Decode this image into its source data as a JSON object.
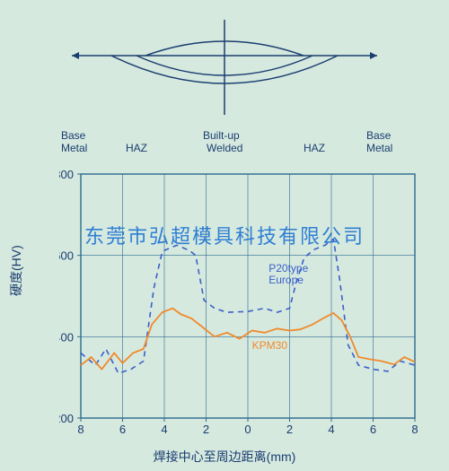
{
  "colors": {
    "page_bg": "#d6e9df",
    "grid": "#2b6a8f",
    "text": "#1a3d70",
    "watermark": "#2f7fd4",
    "series_p20": "#3b5fc9",
    "series_kpm30": "#f08a2a",
    "diagram_stroke": "#1a3d70"
  },
  "diagram": {
    "type": "weld-cross-section-sketch"
  },
  "region_labels": {
    "left_base_top": "Base",
    "left_base_bot": "Metal",
    "haz": "HAZ",
    "built_top": "Built-up",
    "built_bot": "Welded",
    "right_base_top": "Base",
    "right_base_bot": "Metal"
  },
  "chart": {
    "type": "line",
    "ylabel": "硬度(HV)",
    "xlabel": "焊接中心至周边距离(mm)",
    "ylim": [
      200,
      800
    ],
    "ytick_step": 200,
    "xticks_left": [
      8,
      6,
      4,
      2
    ],
    "xtick_center": 0,
    "xticks_right": [
      2,
      4,
      6,
      8
    ],
    "grid_x_divisions": 8,
    "grid_y_divisions": 3,
    "series": [
      {
        "name": "P20type Europe",
        "label_lines": [
          "P20type",
          "Europe"
        ],
        "color": "#3b5fc9",
        "dash": "6,5",
        "width": 1.6,
        "points": [
          {
            "x": -8,
            "y": 360
          },
          {
            "x": -7.3,
            "y": 330
          },
          {
            "x": -6.8,
            "y": 370
          },
          {
            "x": -6.2,
            "y": 310
          },
          {
            "x": -5.6,
            "y": 320
          },
          {
            "x": -5.0,
            "y": 340
          },
          {
            "x": -4.5,
            "y": 520
          },
          {
            "x": -4.1,
            "y": 610
          },
          {
            "x": -3.4,
            "y": 625
          },
          {
            "x": -2.8,
            "y": 612
          },
          {
            "x": -2.5,
            "y": 600
          },
          {
            "x": -2.1,
            "y": 490
          },
          {
            "x": -1.6,
            "y": 470
          },
          {
            "x": -1.0,
            "y": 460
          },
          {
            "x": 0,
            "y": 462
          },
          {
            "x": 0.8,
            "y": 470
          },
          {
            "x": 1.4,
            "y": 460
          },
          {
            "x": 2.0,
            "y": 470
          },
          {
            "x": 2.3,
            "y": 530
          },
          {
            "x": 2.7,
            "y": 595
          },
          {
            "x": 3.2,
            "y": 615
          },
          {
            "x": 3.7,
            "y": 625
          },
          {
            "x": 4.1,
            "y": 640
          },
          {
            "x": 4.4,
            "y": 540
          },
          {
            "x": 4.8,
            "y": 380
          },
          {
            "x": 5.3,
            "y": 330
          },
          {
            "x": 6.0,
            "y": 320
          },
          {
            "x": 6.7,
            "y": 315
          },
          {
            "x": 7.3,
            "y": 340
          },
          {
            "x": 8,
            "y": 330
          }
        ]
      },
      {
        "name": "KPM30",
        "label_lines": [
          "KPM30"
        ],
        "color": "#f08a2a",
        "dash": "",
        "width": 1.8,
        "points": [
          {
            "x": -8,
            "y": 330
          },
          {
            "x": -7.5,
            "y": 350
          },
          {
            "x": -7.0,
            "y": 320
          },
          {
            "x": -6.4,
            "y": 360
          },
          {
            "x": -6.0,
            "y": 335
          },
          {
            "x": -5.5,
            "y": 360
          },
          {
            "x": -5.0,
            "y": 370
          },
          {
            "x": -4.6,
            "y": 430
          },
          {
            "x": -4.1,
            "y": 460
          },
          {
            "x": -3.6,
            "y": 470
          },
          {
            "x": -3.2,
            "y": 455
          },
          {
            "x": -2.7,
            "y": 445
          },
          {
            "x": -2.2,
            "y": 425
          },
          {
            "x": -1.6,
            "y": 400
          },
          {
            "x": -1.0,
            "y": 410
          },
          {
            "x": -0.4,
            "y": 395
          },
          {
            "x": 0.2,
            "y": 415
          },
          {
            "x": 0.8,
            "y": 410
          },
          {
            "x": 1.4,
            "y": 420
          },
          {
            "x": 2.0,
            "y": 415
          },
          {
            "x": 2.5,
            "y": 418
          },
          {
            "x": 3.1,
            "y": 430
          },
          {
            "x": 3.6,
            "y": 445
          },
          {
            "x": 4.1,
            "y": 458
          },
          {
            "x": 4.5,
            "y": 440
          },
          {
            "x": 4.9,
            "y": 400
          },
          {
            "x": 5.3,
            "y": 350
          },
          {
            "x": 5.8,
            "y": 345
          },
          {
            "x": 6.4,
            "y": 340
          },
          {
            "x": 7.0,
            "y": 332
          },
          {
            "x": 7.5,
            "y": 350
          },
          {
            "x": 8,
            "y": 338
          }
        ]
      }
    ],
    "series_label_pos": {
      "P20type Europe": {
        "x": 1.0,
        "y": 560
      },
      "KPM30": {
        "x": 0.2,
        "y": 370
      }
    }
  },
  "watermark": "东莞市弘超模具科技有限公司"
}
